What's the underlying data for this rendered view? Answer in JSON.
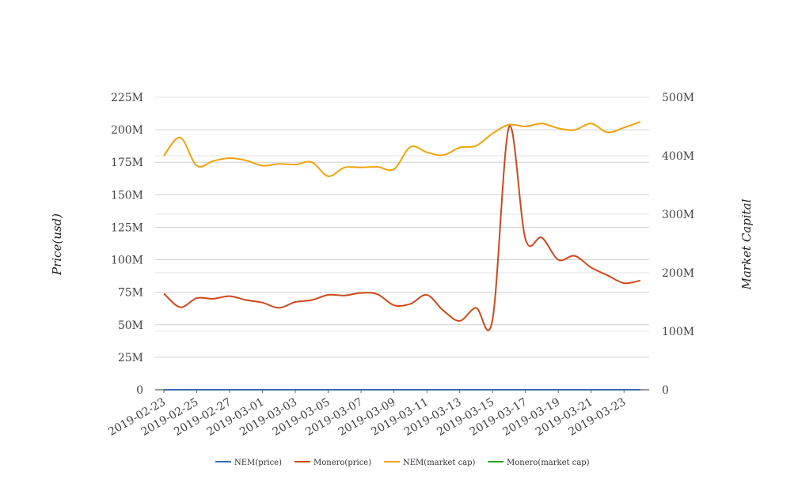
{
  "chart_data": {
    "type": "line",
    "ylabel_left": "Price(usd)",
    "ylabel_right": "Market Capital",
    "left_axis": {
      "ylim": [
        0,
        225000000
      ],
      "ticks": [
        "0",
        "25M",
        "50M",
        "75M",
        "100M",
        "125M",
        "150M",
        "175M",
        "200M",
        "225M"
      ]
    },
    "right_axis": {
      "ylim": [
        0,
        500000000
      ],
      "ticks": [
        "0",
        "100M",
        "200M",
        "300M",
        "400M",
        "500M"
      ]
    },
    "x_tick_labels": [
      "2019-02-23",
      "2019-02-25",
      "2019-02-27",
      "2019-03-01",
      "2019-03-03",
      "2019-03-05",
      "2019-03-07",
      "2019-03-09",
      "2019-03-11",
      "2019-03-13",
      "2019-03-15",
      "2019-03-17",
      "2019-03-19",
      "2019-03-21",
      "2019-03-23"
    ],
    "x": [
      "2019-02-23",
      "2019-02-24",
      "2019-02-25",
      "2019-02-26",
      "2019-02-27",
      "2019-02-28",
      "2019-03-01",
      "2019-03-02",
      "2019-03-03",
      "2019-03-04",
      "2019-03-05",
      "2019-03-06",
      "2019-03-07",
      "2019-03-08",
      "2019-03-09",
      "2019-03-10",
      "2019-03-11",
      "2019-03-12",
      "2019-03-13",
      "2019-03-14",
      "2019-03-15",
      "2019-03-16",
      "2019-03-17",
      "2019-03-18",
      "2019-03-19",
      "2019-03-20",
      "2019-03-21",
      "2019-03-22",
      "2019-03-23",
      "2019-03-24"
    ],
    "grid": true,
    "legend_position": "bottom",
    "series": [
      {
        "name": "NEM(price)",
        "axis": "left",
        "color": "#3d6bb3",
        "values": [
          0.05,
          0.05,
          0.05,
          0.05,
          0.05,
          0.05,
          0.05,
          0.05,
          0.05,
          0.05,
          0.05,
          0.05,
          0.05,
          0.05,
          0.05,
          0.05,
          0.05,
          0.05,
          0.05,
          0.05,
          0.05,
          0.05,
          0.05,
          0.05,
          0.05,
          0.05,
          0.05,
          0.05,
          0.05,
          0.05
        ]
      },
      {
        "name": "Monero(price)",
        "axis": "left",
        "color": "#cc4a1c",
        "values": [
          74000000,
          63500000,
          70500000,
          70000000,
          72000000,
          69000000,
          67000000,
          63000000,
          67500000,
          69000000,
          73000000,
          72500000,
          74500000,
          73500000,
          65000000,
          66000000,
          73000000,
          61000000,
          53000000,
          63000000,
          54000000,
          202000000,
          116000000,
          117000000,
          100000000,
          103000000,
          94000000,
          88000000,
          82000000,
          84000000
        ]
      },
      {
        "name": "NEM(market cap)",
        "axis": "right",
        "color": "#f0a30a",
        "values": [
          400000000,
          431000000,
          383000000,
          391000000,
          396000000,
          392000000,
          383000000,
          386000000,
          385000000,
          389000000,
          365000000,
          380000000,
          380000000,
          381000000,
          377000000,
          415000000,
          406000000,
          401000000,
          414000000,
          417000000,
          438000000,
          453000000,
          450000000,
          455000000,
          447000000,
          444000000,
          455000000,
          440000000,
          448000000,
          458000000
        ]
      },
      {
        "name": "Monero(market cap)",
        "axis": "right",
        "color": "#2ca02c",
        "values": [
          600,
          600,
          600,
          600,
          600,
          600,
          600,
          600,
          600,
          600,
          600,
          600,
          600,
          600,
          600,
          600,
          600,
          600,
          600,
          600,
          600,
          600,
          600,
          600,
          600,
          600,
          600,
          600,
          600,
          600
        ]
      }
    ]
  }
}
